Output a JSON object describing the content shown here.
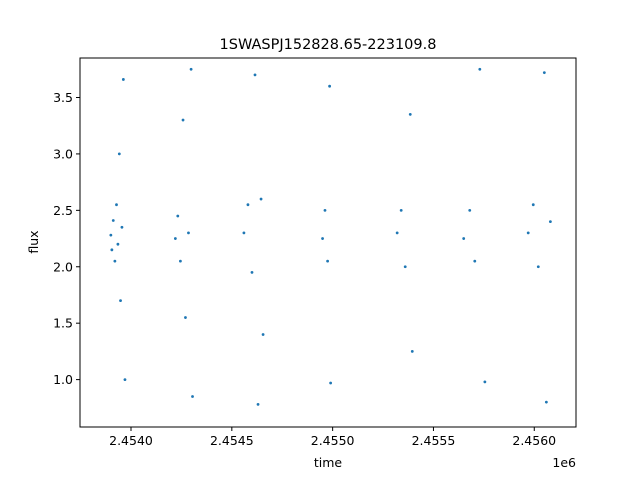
{
  "chart_data": {
    "type": "scatter",
    "title": "1SWASPJ152828.65-223109.8",
    "xlabel": "time",
    "ylabel": "flux",
    "x_offset_label": "1e6",
    "xlim": [
      2453747,
      2456207
    ],
    "ylim": [
      0.58,
      3.85
    ],
    "x_ticks": [
      2454000,
      2454500,
      2455000,
      2455500,
      2456000
    ],
    "x_tick_labels": [
      "2.4540",
      "2.4545",
      "2.4550",
      "2.4555",
      "2.4560"
    ],
    "y_ticks": [
      1.0,
      1.5,
      2.0,
      2.5,
      3.0,
      3.5
    ],
    "y_tick_labels": [
      "1.0",
      "1.5",
      "2.0",
      "2.5",
      "3.0",
      "3.5"
    ],
    "grid": false,
    "legend": "none",
    "marker_color": "#1f77b4",
    "series": [
      {
        "points": [
          {
            "x": 2453900,
            "y": 2.28
          },
          {
            "x": 2453905,
            "y": 2.15
          },
          {
            "x": 2453912,
            "y": 2.41
          },
          {
            "x": 2453920,
            "y": 2.05
          },
          {
            "x": 2453928,
            "y": 2.55
          },
          {
            "x": 2453935,
            "y": 2.2
          },
          {
            "x": 2453942,
            "y": 3.0
          },
          {
            "x": 2453948,
            "y": 1.7
          },
          {
            "x": 2453955,
            "y": 2.35
          },
          {
            "x": 2453962,
            "y": 3.66
          },
          {
            "x": 2453970,
            "y": 1.0
          },
          {
            "x": 2454220,
            "y": 2.25
          },
          {
            "x": 2454232,
            "y": 2.45
          },
          {
            "x": 2454245,
            "y": 2.05
          },
          {
            "x": 2454258,
            "y": 3.3
          },
          {
            "x": 2454270,
            "y": 1.55
          },
          {
            "x": 2454285,
            "y": 2.3
          },
          {
            "x": 2454298,
            "y": 3.75
          },
          {
            "x": 2454305,
            "y": 0.85
          },
          {
            "x": 2454560,
            "y": 2.3
          },
          {
            "x": 2454580,
            "y": 2.55
          },
          {
            "x": 2454600,
            "y": 1.95
          },
          {
            "x": 2454615,
            "y": 3.7
          },
          {
            "x": 2454630,
            "y": 0.78
          },
          {
            "x": 2454645,
            "y": 2.6
          },
          {
            "x": 2454655,
            "y": 1.4
          },
          {
            "x": 2454950,
            "y": 2.25
          },
          {
            "x": 2454962,
            "y": 2.5
          },
          {
            "x": 2454975,
            "y": 2.05
          },
          {
            "x": 2454985,
            "y": 3.6
          },
          {
            "x": 2454990,
            "y": 0.97
          },
          {
            "x": 2455320,
            "y": 2.3
          },
          {
            "x": 2455340,
            "y": 2.5
          },
          {
            "x": 2455360,
            "y": 2.0
          },
          {
            "x": 2455385,
            "y": 3.35
          },
          {
            "x": 2455395,
            "y": 1.25
          },
          {
            "x": 2455650,
            "y": 2.25
          },
          {
            "x": 2455680,
            "y": 2.5
          },
          {
            "x": 2455705,
            "y": 2.05
          },
          {
            "x": 2455730,
            "y": 3.75
          },
          {
            "x": 2455755,
            "y": 0.98
          },
          {
            "x": 2455970,
            "y": 2.3
          },
          {
            "x": 2455995,
            "y": 2.55
          },
          {
            "x": 2456020,
            "y": 2.0
          },
          {
            "x": 2456050,
            "y": 3.72
          },
          {
            "x": 2456060,
            "y": 0.8
          },
          {
            "x": 2456080,
            "y": 2.4
          }
        ]
      }
    ]
  }
}
